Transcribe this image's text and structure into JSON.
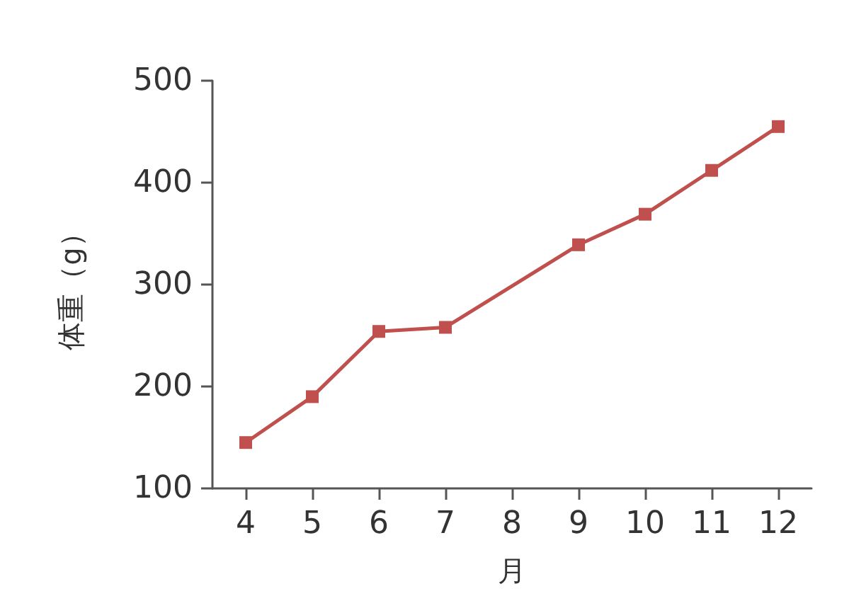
{
  "chart_data": {
    "type": "line",
    "xlabel": "月",
    "ylabel": "体重（g）",
    "x": [
      4,
      5,
      6,
      7,
      9,
      10,
      11,
      12
    ],
    "series": [
      {
        "color": "#c0504d",
        "values": [
          145,
          190,
          254,
          258,
          339,
          369,
          412,
          455
        ]
      }
    ],
    "xlim": [
      3.5,
      12.5
    ],
    "xticks": [
      4,
      5,
      6,
      7,
      8,
      9,
      10,
      11,
      12
    ],
    "ylim": [
      100,
      500
    ],
    "yticks": [
      100,
      200,
      300,
      400,
      500
    ],
    "marker": "square",
    "line_style": "solid"
  }
}
